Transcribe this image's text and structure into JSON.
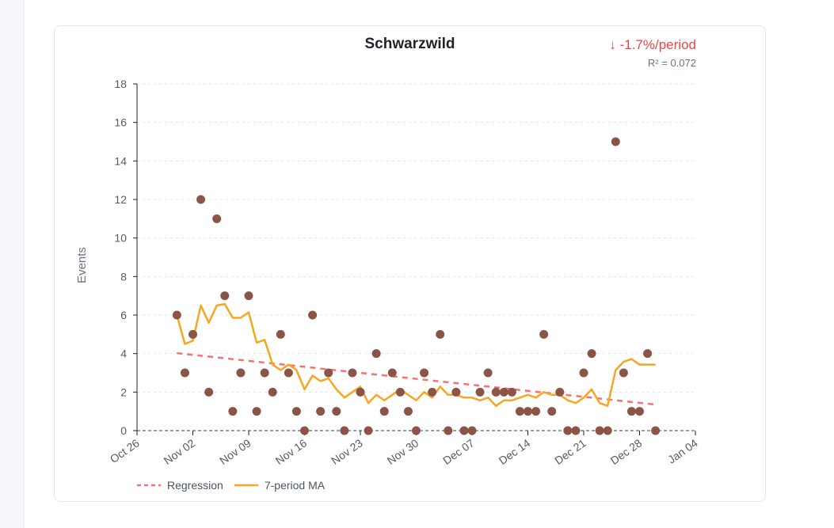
{
  "chart_data": {
    "type": "scatter",
    "title": "Schwarzwild",
    "trend_label": "↓ -1.7%/period",
    "r2_label": "R² = 0.072",
    "ylabel": "Events",
    "xlabel": "",
    "ylim": [
      0,
      18
    ],
    "yticks": [
      0,
      2,
      4,
      6,
      8,
      10,
      12,
      14,
      16,
      18
    ],
    "xlim": [
      "2025-10-26",
      "2026-01-04"
    ],
    "xticks": [
      "Oct 26",
      "Nov 02",
      "Nov 09",
      "Nov 16",
      "Nov 23",
      "Nov 30",
      "Dec 07",
      "Dec 14",
      "Dec 21",
      "Dec 28",
      "Jan 04"
    ],
    "grid": true,
    "legend_position": "bottom-left",
    "start_date": "2025-10-31",
    "values": [
      6,
      3,
      5,
      12,
      2,
      11,
      7,
      1,
      3,
      7,
      1,
      3,
      2,
      5,
      3,
      1,
      0,
      6,
      1,
      3,
      1,
      0,
      3,
      2,
      0,
      4,
      1,
      3,
      2,
      1,
      0,
      3,
      2,
      5,
      0,
      2,
      0,
      0,
      2,
      3,
      2,
      2,
      2,
      1,
      1,
      1,
      5,
      1,
      2,
      0,
      0,
      3,
      4,
      0,
      0,
      15,
      3,
      1,
      1,
      4,
      0
    ],
    "series": [
      {
        "name": "Regression",
        "color": "#f87171"
      },
      {
        "name": "7-period MA",
        "color": "#f5a623"
      }
    ],
    "point_color": "#8b5446"
  }
}
